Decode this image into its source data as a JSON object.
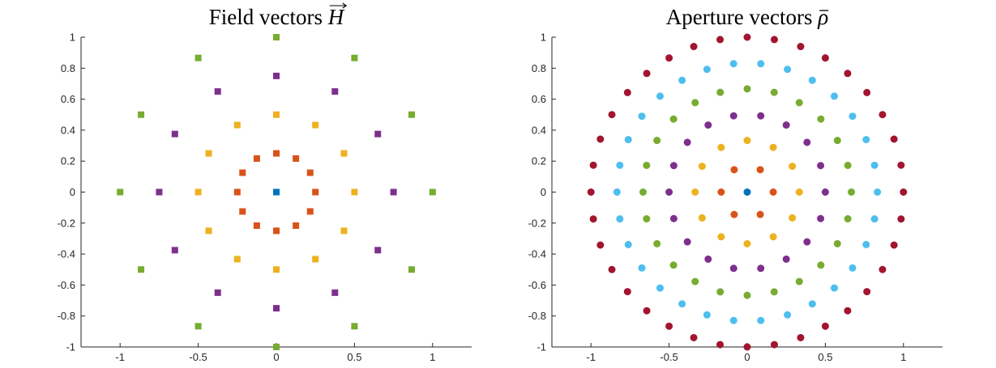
{
  "colors": {
    "ring0": "#0072BD",
    "ring1": "#D95319",
    "ring2": "#EDB120",
    "ring3": "#7E2F8E",
    "ring4": "#77AC30",
    "ring5": "#4DBEEE",
    "ring6": "#A2142F",
    "axis": "#262626"
  },
  "chart_data": [
    {
      "type": "scatter",
      "title": "Field vectors H",
      "title_main": "Field vectors ",
      "title_symbol": "H",
      "title_accent": "vector-arrow",
      "marker": "square",
      "xlim": [
        -1.25,
        1.25
      ],
      "ylim": [
        -1,
        1
      ],
      "xticks": [
        -1,
        -0.5,
        0,
        0.5,
        1
      ],
      "xtick_labels": [
        "-1",
        "-0.5",
        "0",
        "0.5",
        "1"
      ],
      "yticks": [
        1,
        0.8,
        0.6,
        0.4,
        0.2,
        0,
        -0.2,
        -0.4,
        -0.6,
        -0.8,
        -1
      ],
      "ytick_labels": [
        "1",
        "0.8",
        "0.6",
        "0.4",
        "0.2",
        "0",
        "-0.2",
        "-0.4",
        "-0.6",
        "-0.8",
        "-1"
      ],
      "rings": [
        {
          "radius": 0,
          "count": 1,
          "color": "ring0"
        },
        {
          "radius": 0.25,
          "count": 12,
          "color": "ring1"
        },
        {
          "radius": 0.5,
          "count": 12,
          "color": "ring2"
        },
        {
          "radius": 0.75,
          "count": 12,
          "color": "ring3"
        },
        {
          "radius": 1.0,
          "count": 12,
          "color": "ring4"
        }
      ],
      "grid": false
    },
    {
      "type": "scatter",
      "title": "Aperture vectors ρ̄",
      "title_main": "Aperture vectors ",
      "title_symbol": "ρ",
      "title_accent": "bar",
      "marker": "circle",
      "xlim": [
        -1.25,
        1.25
      ],
      "ylim": [
        -1,
        1
      ],
      "xticks": [
        -1,
        -0.5,
        0,
        0.5,
        1
      ],
      "xtick_labels": [
        "-1",
        "-0.5",
        "0",
        "0.5",
        "1"
      ],
      "yticks": [
        1,
        0.8,
        0.6,
        0.4,
        0.2,
        0,
        -0.2,
        -0.4,
        -0.6,
        -0.8,
        -1
      ],
      "ytick_labels": [
        "1",
        "0.8",
        "0.6",
        "0.4",
        "0.2",
        "0",
        "-0.2",
        "-0.4",
        "-0.6",
        "-0.8",
        "-1"
      ],
      "rings": [
        {
          "radius": 0,
          "count": 1,
          "color": "ring0"
        },
        {
          "radius": 0.1667,
          "count": 6,
          "color": "ring1"
        },
        {
          "radius": 0.3333,
          "count": 12,
          "color": "ring2"
        },
        {
          "radius": 0.5,
          "count": 18,
          "color": "ring3"
        },
        {
          "radius": 0.6667,
          "count": 24,
          "color": "ring4"
        },
        {
          "radius": 0.8333,
          "count": 30,
          "color": "ring5"
        },
        {
          "radius": 1.0,
          "count": 36,
          "color": "ring6"
        }
      ],
      "grid": false
    }
  ]
}
